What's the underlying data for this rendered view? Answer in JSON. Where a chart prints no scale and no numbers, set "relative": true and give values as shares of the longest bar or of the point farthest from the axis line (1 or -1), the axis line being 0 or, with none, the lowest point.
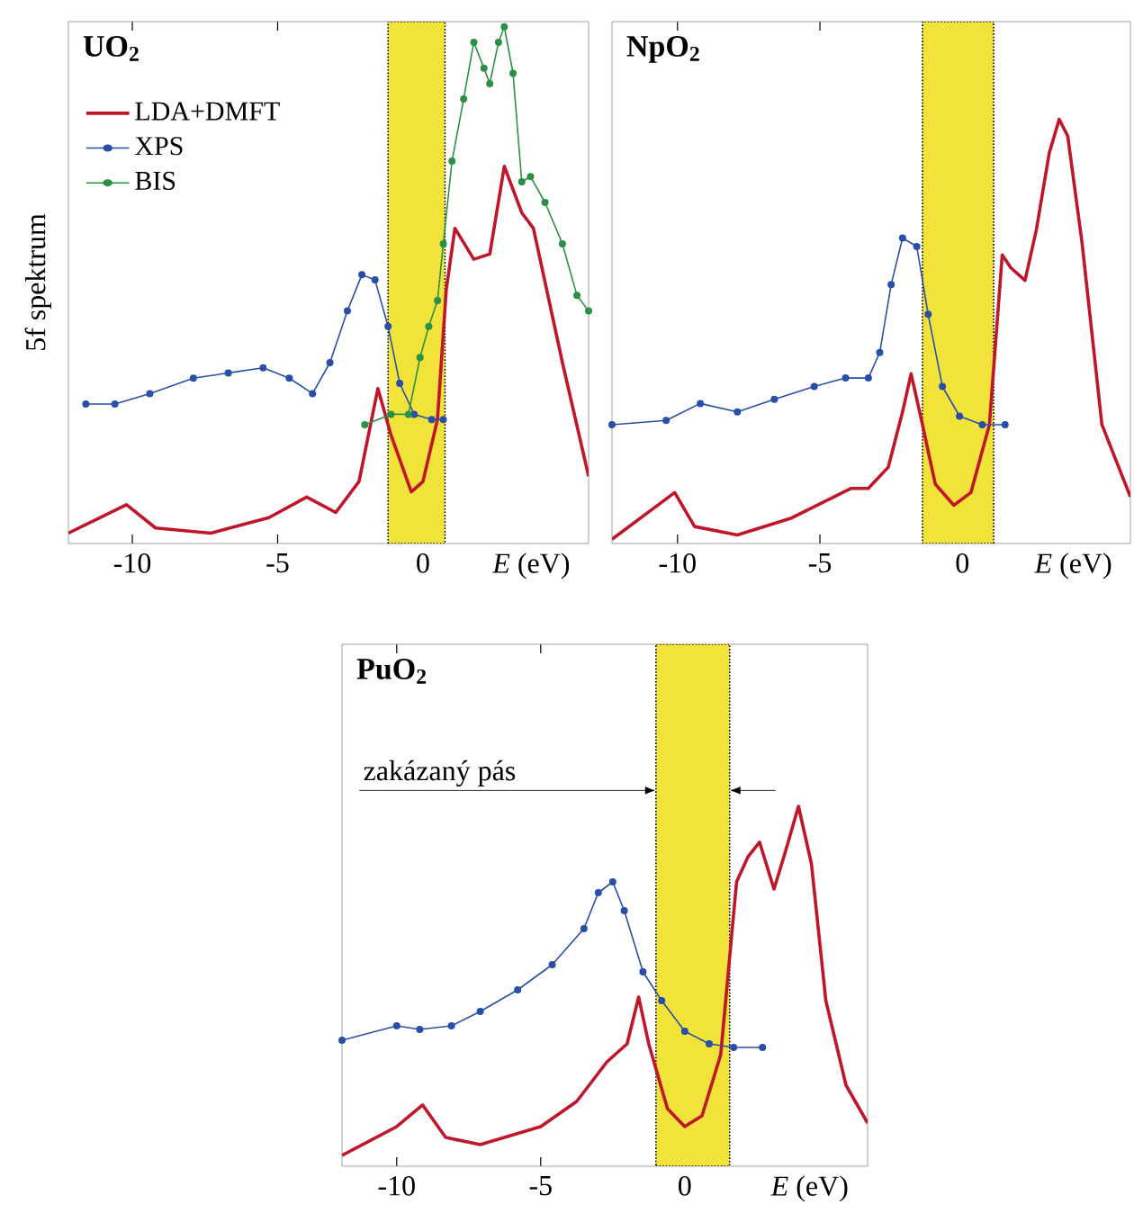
{
  "chart_data": [
    {
      "type": "line",
      "title": "UO$_{2}$",
      "ylabel": "5f spektrum",
      "xlabel": "*E* (eV)",
      "relative": true,
      "xlim": [
        -12.2,
        5.7
      ],
      "xticks": [
        -10,
        -5,
        0
      ],
      "legend": "top left",
      "tick_labels": "x",
      "bands": [
        {
          "axis": "x",
          "from": -1.2,
          "to": 0.76,
          "color": "#f2e33a"
        }
      ],
      "series": [
        {
          "name": "LDA+DMFT",
          "color": "#c0162a",
          "marker": "none",
          "x": [
            -12.2,
            -10.2,
            -9.2,
            -7.3,
            -5.3,
            -4.0,
            -3.0,
            -2.2,
            -1.55,
            -1.1,
            -0.4,
            0,
            0.5,
            0.8,
            1.1,
            1.75,
            2.3,
            2.8,
            3.4,
            3.8,
            4.8,
            5.7
          ],
          "values": [
            0.02,
            0.075,
            0.03,
            0.02,
            0.05,
            0.09,
            0.06,
            0.12,
            0.3,
            0.21,
            0.1,
            0.12,
            0.24,
            0.49,
            0.61,
            0.55,
            0.56,
            0.73,
            0.64,
            0.61,
            0.35,
            0.13
          ]
        },
        {
          "name": "XPS",
          "color": "#2a4fa8",
          "marker": "circle",
          "x": [
            -11.6,
            -10.6,
            -9.4,
            -7.9,
            -6.7,
            -5.5,
            -4.6,
            -3.8,
            -3.2,
            -2.6,
            -2.1,
            -1.65,
            -1.2,
            -0.8,
            -0.3,
            0.3,
            0.7
          ],
          "values": [
            0.27,
            0.27,
            0.29,
            0.32,
            0.33,
            0.34,
            0.32,
            0.29,
            0.35,
            0.45,
            0.52,
            0.51,
            0.42,
            0.31,
            0.25,
            0.24,
            0.24
          ]
        },
        {
          "name": "BIS",
          "color": "#2a9048",
          "marker": "circle",
          "x": [
            -2.0,
            -1.1,
            -0.5,
            -0.1,
            0.2,
            0.5,
            0.7,
            1.0,
            1.4,
            1.75,
            2.1,
            2.3,
            2.6,
            2.8,
            3.1,
            3.4,
            3.7,
            4.2,
            4.8,
            5.3,
            5.7
          ],
          "values": [
            0.23,
            0.25,
            0.25,
            0.36,
            0.42,
            0.47,
            0.58,
            0.74,
            0.86,
            0.97,
            0.92,
            0.89,
            0.97,
            1.0,
            0.91,
            0.7,
            0.71,
            0.66,
            0.58,
            0.48,
            0.45
          ]
        }
      ]
    },
    {
      "type": "line",
      "title": "NpO$_{2}$",
      "xlabel": "*E* (eV)",
      "relative": true,
      "xlim": [
        -12.3,
        5.9
      ],
      "xticks": [
        -10,
        -5,
        0
      ],
      "tick_labels": "x",
      "bands": [
        {
          "axis": "x",
          "from": -1.4,
          "to": 1.1,
          "color": "#f2e33a"
        }
      ],
      "series": [
        {
          "color": "#c0162a",
          "marker": "none",
          "x": [
            -12.3,
            -10.1,
            -9.4,
            -7.9,
            -6.0,
            -3.9,
            -3.3,
            -2.6,
            -2.1,
            -1.8,
            -1.4,
            -0.95,
            -0.3,
            0.3,
            0.95,
            1.4,
            1.7,
            2.2,
            2.6,
            3.05,
            3.4,
            3.7,
            4.2,
            4.9,
            5.9
          ],
          "values": [
            0.01,
            0.12,
            0.04,
            0.02,
            0.06,
            0.13,
            0.13,
            0.18,
            0.31,
            0.4,
            0.28,
            0.14,
            0.09,
            0.12,
            0.28,
            0.68,
            0.65,
            0.62,
            0.74,
            0.92,
            1.0,
            0.96,
            0.71,
            0.28,
            0.11
          ]
        },
        {
          "color": "#2a4fa8",
          "marker": "circle",
          "x": [
            -12.3,
            -10.4,
            -9.2,
            -7.9,
            -6.6,
            -5.2,
            -4.1,
            -3.3,
            -2.9,
            -2.5,
            -2.1,
            -1.6,
            -1.2,
            -0.7,
            -0.1,
            0.7,
            1.5
          ],
          "values": [
            0.28,
            0.29,
            0.33,
            0.31,
            0.34,
            0.37,
            0.39,
            0.39,
            0.45,
            0.61,
            0.72,
            0.7,
            0.54,
            0.37,
            0.3,
            0.28,
            0.28
          ]
        }
      ]
    },
    {
      "type": "line",
      "title": "PuO$_{2}$",
      "xlabel": "*E* (eV)",
      "relative": true,
      "xlim": [
        -11.9,
        6.35
      ],
      "xticks": [
        -10,
        -5,
        0
      ],
      "tick_labels": "x",
      "bands": [
        {
          "axis": "x",
          "from": -1.0,
          "to": 1.56,
          "color": "#f2e33a",
          "label": "zakázaný pás"
        }
      ],
      "series": [
        {
          "color": "#c0162a",
          "marker": "none",
          "x": [
            -11.9,
            -10.0,
            -9.1,
            -8.3,
            -7.1,
            -5.0,
            -3.75,
            -2.7,
            -2.0,
            -1.6,
            -1.25,
            -0.6,
            0,
            0.6,
            1.25,
            1.8,
            2.2,
            2.6,
            3.1,
            3.5,
            3.95,
            4.4,
            4.9,
            5.6,
            6.35
          ],
          "values": [
            0.03,
            0.11,
            0.17,
            0.08,
            0.06,
            0.11,
            0.18,
            0.29,
            0.34,
            0.47,
            0.34,
            0.16,
            0.11,
            0.14,
            0.31,
            0.79,
            0.86,
            0.9,
            0.77,
            0.875,
            1.0,
            0.84,
            0.46,
            0.225,
            0.12
          ]
        },
        {
          "color": "#2a4fa8",
          "marker": "circle",
          "x": [
            -11.9,
            -10.0,
            -9.2,
            -8.1,
            -7.1,
            -5.8,
            -4.6,
            -3.5,
            -3.0,
            -2.5,
            -2.1,
            -1.45,
            -0.8,
            0,
            0.85,
            1.7,
            2.7
          ],
          "values": [
            0.35,
            0.39,
            0.38,
            0.39,
            0.43,
            0.49,
            0.56,
            0.66,
            0.76,
            0.79,
            0.71,
            0.54,
            0.46,
            0.375,
            0.34,
            0.33,
            0.33
          ]
        }
      ]
    }
  ]
}
